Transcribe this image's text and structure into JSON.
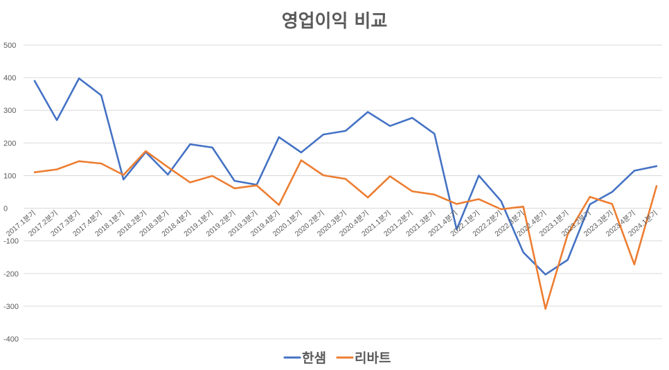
{
  "chart_data": {
    "type": "line",
    "title": "영업이익 비교",
    "xlabel": "",
    "ylabel": "",
    "ylim": [
      -400,
      500
    ],
    "yticks": [
      500,
      400,
      300,
      200,
      100,
      0,
      -100,
      -200,
      -300,
      -400
    ],
    "ytick_labels": [
      "500",
      "400",
      "300",
      "200",
      "100",
      "0",
      "-100",
      "-200",
      "-300",
      "-400"
    ],
    "grid": true,
    "legend_position": "bottom",
    "categories": [
      "2017.1분기",
      "2017.2분기",
      "2017.3분기",
      "2017.4분기",
      "2018.1분기",
      "2018.2분기",
      "2018.3분기",
      "2018.4분기",
      "2019.1분기",
      "2019.2분기",
      "2019.3분기",
      "2019.4분기",
      "2020.1분기",
      "2020.2분기",
      "2020.3분기",
      "2020.4분기",
      "2021.1분기",
      "2021.2분기",
      "2021.3분기",
      "2021.4분기",
      "2022.1분기",
      "2022.2분기",
      "2022.3분기",
      "2022.4분기",
      "2023.1분기",
      "2023.2분기",
      "2023.3분기",
      "2023.4분기",
      "2024.1분기"
    ],
    "series": [
      {
        "name": "한샘",
        "color": "#4472c4",
        "values": [
          390,
          270,
          398,
          346,
          88,
          172,
          103,
          196,
          186,
          84,
          72,
          218,
          171,
          226,
          237,
          295,
          252,
          277,
          228,
          -65,
          100,
          22,
          -135,
          -203,
          -158,
          12,
          50,
          115,
          129
        ]
      },
      {
        "name": "리바트",
        "color": "#ed7d31",
        "values": [
          110,
          119,
          144,
          137,
          102,
          175,
          126,
          79,
          99,
          61,
          70,
          10,
          147,
          101,
          90,
          33,
          98,
          52,
          42,
          13,
          28,
          -3,
          5,
          -308,
          -80,
          35,
          13,
          -172,
          68
        ]
      }
    ]
  }
}
